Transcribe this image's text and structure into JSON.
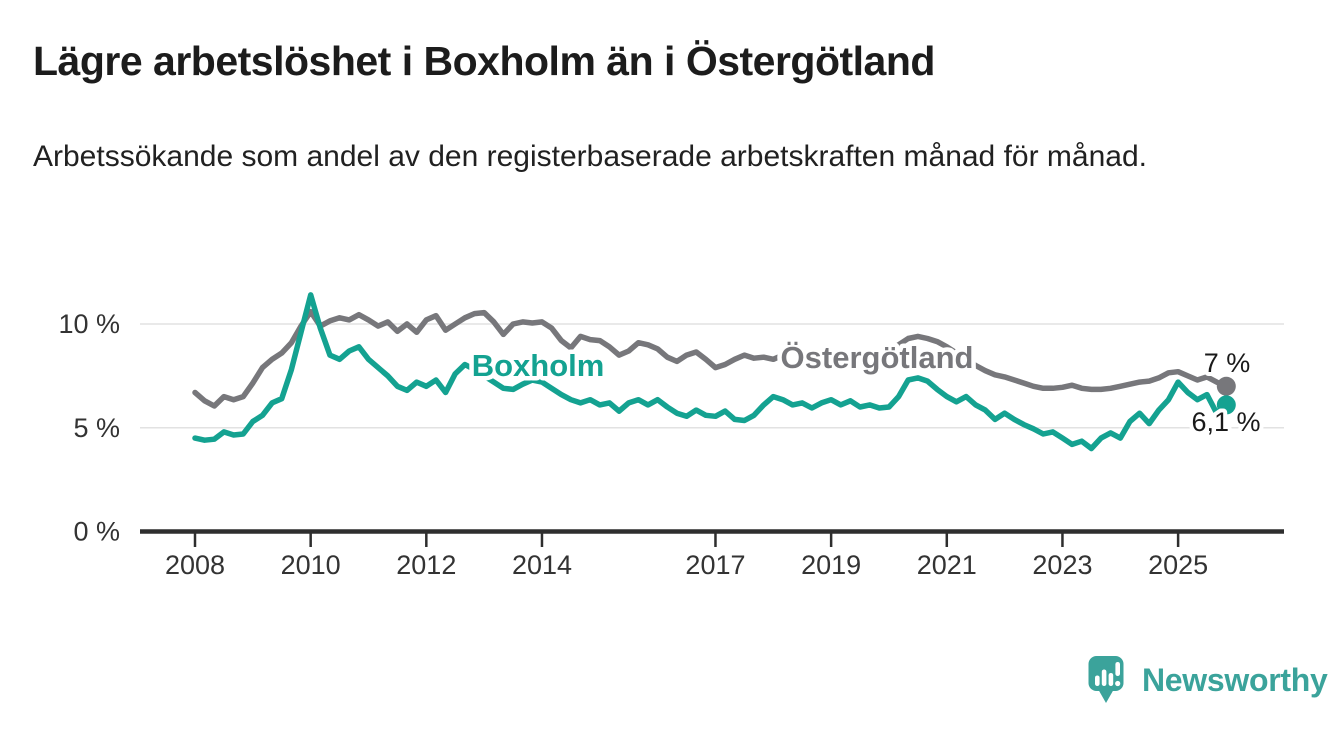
{
  "header": {
    "title": "Lägre arbetslöshet i Boxholm än i Östergötland",
    "subtitle": "Arbetssökande som andel av den registerbaserade arbetskraften månad för månad."
  },
  "chart_data": {
    "type": "line",
    "title": "Lägre arbetslöshet i Boxholm än i Östergötland",
    "unit": "%",
    "x_start_year": 2008.0,
    "x_step_years": 0.166667,
    "x_end_year": 2025.83,
    "x_tick_years": [
      2008,
      2010,
      2012,
      2014,
      2017,
      2019,
      2021,
      2023,
      2025
    ],
    "x_tick_labels": [
      "2008",
      "2010",
      "2012",
      "2014",
      "2017",
      "2019",
      "2021",
      "2023",
      "2025"
    ],
    "y_ticks": [
      {
        "value": 0,
        "label": "0 %"
      },
      {
        "value": 5,
        "label": "5 %"
      },
      {
        "value": 10,
        "label": "10 %"
      }
    ],
    "ylim": [
      0,
      11.8
    ],
    "grid": "horizontal",
    "legend_position": "inline-labels",
    "series": [
      {
        "name": "Östergötland",
        "color": "#77777b",
        "end_label": "7 %",
        "end_value": 7.0,
        "values": [
          6.7,
          6.3,
          6.05,
          6.5,
          6.35,
          6.5,
          7.15,
          7.9,
          8.3,
          8.6,
          9.1,
          9.9,
          10.6,
          9.9,
          10.15,
          10.3,
          10.2,
          10.45,
          10.2,
          9.9,
          10.1,
          9.65,
          10.0,
          9.6,
          10.2,
          10.4,
          9.7,
          10.0,
          10.3,
          10.5,
          10.55,
          10.1,
          9.5,
          10.0,
          10.1,
          10.05,
          10.1,
          9.8,
          9.2,
          8.85,
          9.4,
          9.25,
          9.2,
          8.9,
          8.5,
          8.7,
          9.1,
          9.0,
          8.8,
          8.4,
          8.2,
          8.5,
          8.65,
          8.3,
          7.9,
          8.05,
          8.3,
          8.5,
          8.35,
          8.4,
          8.3,
          8.5,
          8.7,
          8.6,
          8.7,
          8.5,
          8.45,
          8.4,
          8.3,
          8.2,
          8.35,
          8.5,
          8.7,
          9.0,
          9.3,
          9.4,
          9.3,
          9.15,
          8.9,
          8.6,
          8.3,
          8.0,
          7.75,
          7.55,
          7.45,
          7.3,
          7.15,
          7.0,
          6.9,
          6.9,
          6.95,
          7.05,
          6.9,
          6.85,
          6.85,
          6.9,
          7.0,
          7.1,
          7.2,
          7.25,
          7.4,
          7.65,
          7.7,
          7.5,
          7.3,
          7.45,
          7.2,
          7.0
        ]
      },
      {
        "name": "Boxholm",
        "color": "#14a291",
        "end_label": "6,1 %",
        "end_value": 6.1,
        "values": [
          4.5,
          4.4,
          4.45,
          4.8,
          4.65,
          4.7,
          5.3,
          5.6,
          6.2,
          6.4,
          7.8,
          9.6,
          11.4,
          9.8,
          8.5,
          8.3,
          8.7,
          8.9,
          8.3,
          7.9,
          7.5,
          7.0,
          6.8,
          7.2,
          7.0,
          7.3,
          6.7,
          7.6,
          8.05,
          7.8,
          7.5,
          7.2,
          6.9,
          6.85,
          7.1,
          7.3,
          7.2,
          6.9,
          6.6,
          6.35,
          6.2,
          6.35,
          6.1,
          6.2,
          5.8,
          6.2,
          6.35,
          6.1,
          6.35,
          6.0,
          5.7,
          5.55,
          5.85,
          5.6,
          5.55,
          5.8,
          5.4,
          5.35,
          5.6,
          6.1,
          6.5,
          6.35,
          6.1,
          6.2,
          5.95,
          6.2,
          6.35,
          6.1,
          6.3,
          6.0,
          6.1,
          5.95,
          6.0,
          6.5,
          7.3,
          7.4,
          7.25,
          6.85,
          6.5,
          6.25,
          6.5,
          6.1,
          5.85,
          5.4,
          5.7,
          5.4,
          5.15,
          4.95,
          4.7,
          4.8,
          4.5,
          4.2,
          4.35,
          4.0,
          4.5,
          4.75,
          4.5,
          5.3,
          5.7,
          5.2,
          5.85,
          6.35,
          7.2,
          6.7,
          6.35,
          6.6,
          5.7,
          6.1
        ]
      }
    ]
  },
  "footer": {
    "logo_text": "Newsworthy",
    "logo_color": "#3ba39b"
  }
}
